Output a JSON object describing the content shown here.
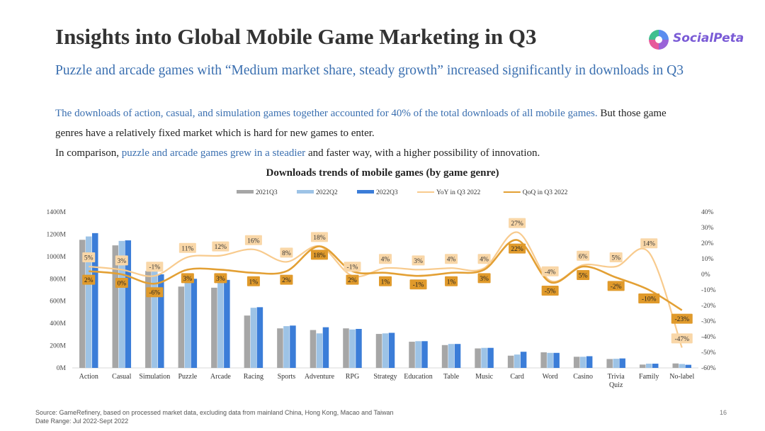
{
  "title": "Insights into Global Mobile Game Marketing in Q3",
  "brand": {
    "name": "SocialPeta",
    "colors": [
      "#5b8def",
      "#e65a9b",
      "#9a63d8",
      "#3fbf8f"
    ]
  },
  "subtitle": "Puzzle and arcade games with “Medium market share, steady growth” increased significantly in downloads in Q3",
  "paragraph": {
    "line1_blue": "The downloads of action, casual, and simulation games together accounted for 40% of the total downloads of all mobile games.",
    "line1_rest": " But those game",
    "line2": "genres have a relatively fixed market which is hard for new games to enter.",
    "line3_start": "In comparison, ",
    "line3_blue": "puzzle and arcade games grew in a steadier",
    "line3_end": " and faster way, with a higher possibility of innovation."
  },
  "footer": {
    "source": "Source: GameRefinery, based on processed market data, excluding data from mainland China, Hong Kong, Macao and Taiwan",
    "date_range": "Date Range: Jul 2022-Sept 2022",
    "page": "16"
  },
  "colors": {
    "q3_2021": "#a6a6a6",
    "q2_2022": "#9dc3e6",
    "q3_2022": "#3b7dd8",
    "yoy": "#f8cb8e",
    "qoq": "#e3a034"
  },
  "chart_data": {
    "type": "bar",
    "title": "Downloads trends of mobile games (by game genre)",
    "categories": [
      "Action",
      "Casual",
      "Simulation",
      "Puzzle",
      "Arcade",
      "Racing",
      "Sports",
      "Adventure",
      "RPG",
      "Strategy",
      "Education",
      "Table",
      "Music",
      "Card",
      "Word",
      "Casino",
      "Trivia Quiz",
      "Family",
      "No-label"
    ],
    "series": [
      {
        "name": "2021Q3",
        "values": [
          1150,
          1100,
          870,
          730,
          720,
          470,
          355,
          340,
          355,
          305,
          235,
          205,
          175,
          110,
          140,
          100,
          80,
          30,
          40
        ]
      },
      {
        "name": "2022Q2",
        "values": [
          1180,
          1140,
          880,
          780,
          790,
          540,
          375,
          310,
          345,
          310,
          240,
          215,
          180,
          120,
          135,
          100,
          82,
          38,
          35
        ]
      },
      {
        "name": "2022Q3",
        "values": [
          1210,
          1145,
          840,
          800,
          790,
          545,
          380,
          365,
          350,
          315,
          240,
          215,
          180,
          145,
          135,
          105,
          85,
          38,
          28
        ]
      }
    ],
    "line_series": [
      {
        "name": "YoY in Q3 2022",
        "values": [
          5,
          3,
          -1,
          11,
          12,
          16,
          8,
          18,
          -1,
          4,
          3,
          4,
          4,
          27,
          -4,
          6,
          5,
          14,
          -47
        ]
      },
      {
        "name": "QoQ in Q3 2022",
        "values": [
          2,
          0,
          -6,
          3,
          3,
          1,
          2,
          18,
          2,
          1,
          -1,
          1,
          3,
          22,
          -5,
          5,
          -2,
          -10,
          -23
        ]
      }
    ],
    "y_left": {
      "min": 0,
      "max": 1400,
      "ticks": [
        "0M",
        "200M",
        "400M",
        "600M",
        "800M",
        "1000M",
        "1200M",
        "1400M"
      ]
    },
    "y_right": {
      "min": -60,
      "max": 40,
      "ticks": [
        "-60%",
        "-50%",
        "-40%",
        "-30%",
        "-20%",
        "-10%",
        "0%",
        "10%",
        "20%",
        "30%",
        "40%"
      ]
    },
    "yoy_labels": [
      "5%",
      "3%",
      "-1%",
      "11%",
      "12%",
      "16%",
      "8%",
      "18%",
      "-1%",
      "4%",
      "3%",
      "4%",
      "4%",
      "27%",
      "-4%",
      "6%",
      "5%",
      "14%",
      "-47%"
    ],
    "qoq_labels": [
      "2%",
      "0%",
      "-6%",
      "3%",
      "3%",
      "1%",
      "2%",
      "18%",
      "2%",
      "1%",
      "-1%",
      "1%",
      "3%",
      "22%",
      "-5%",
      "5%",
      "-2%",
      "-10%",
      "-23%"
    ],
    "legend": "top"
  }
}
